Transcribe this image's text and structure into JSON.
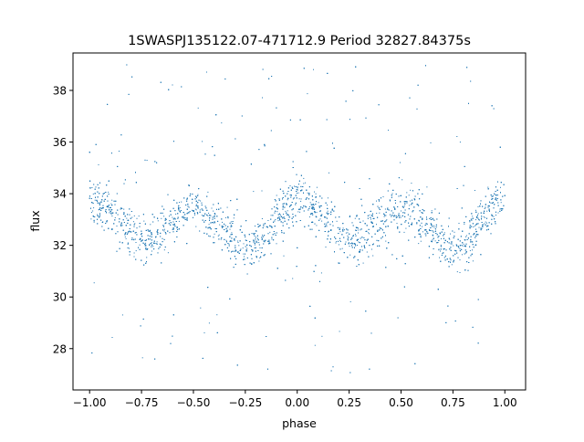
{
  "chart_data": {
    "type": "scatter",
    "title": "1SWASPJ135122.07-471712.9 Period 32827.84375s",
    "xlabel": "phase",
    "ylabel": "flux",
    "xlim": [
      -1.08,
      1.1
    ],
    "ylim": [
      26.4,
      39.45
    ],
    "xticks": [
      -1.0,
      -0.75,
      -0.5,
      -0.25,
      0.0,
      0.25,
      0.5,
      0.75,
      1.0
    ],
    "xtick_labels": [
      "−1.00",
      "−0.75",
      "−0.50",
      "−0.25",
      "0.00",
      "0.25",
      "0.50",
      "0.75",
      "1.00"
    ],
    "yticks": [
      28,
      30,
      32,
      34,
      36,
      38
    ],
    "ytick_labels": [
      "28",
      "30",
      "32",
      "34",
      "36",
      "38"
    ],
    "grid": false,
    "marker_color": "#1f77b4",
    "x_range_of_points": [
      -1.0,
      1.0
    ],
    "y_range_of_points": [
      27.0,
      39.0
    ],
    "light_curve_profile": {
      "phase": [
        0.0,
        0.05,
        0.1,
        0.15,
        0.2,
        0.25,
        0.3,
        0.35,
        0.4,
        0.45,
        0.5,
        0.55,
        0.6,
        0.65,
        0.7,
        0.75,
        0.8,
        0.85,
        0.9,
        0.95,
        1.0
      ],
      "flux": [
        33.85,
        33.65,
        33.25,
        32.85,
        32.5,
        32.25,
        32.3,
        32.6,
        33.0,
        33.35,
        33.5,
        33.3,
        33.0,
        32.6,
        32.15,
        31.9,
        32.0,
        32.5,
        33.0,
        33.5,
        33.85
      ]
    }
  }
}
